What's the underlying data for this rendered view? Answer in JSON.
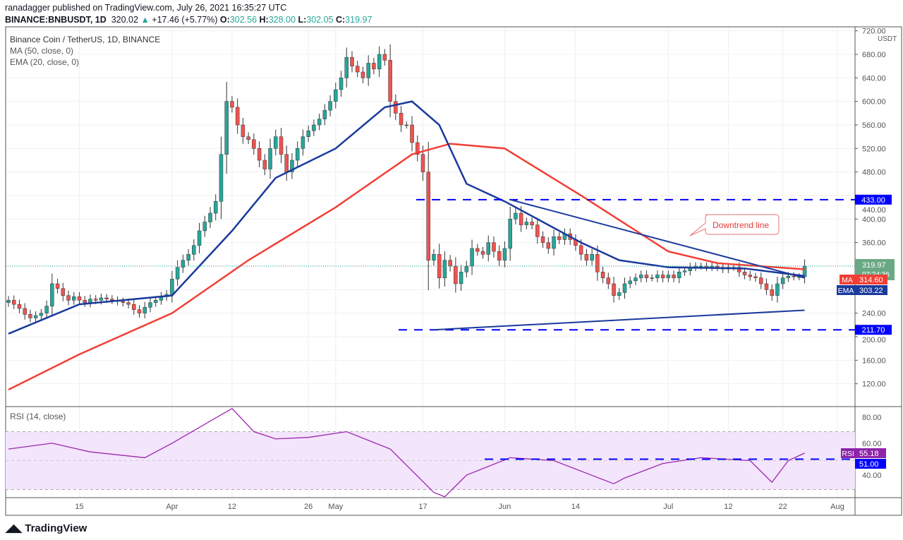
{
  "header": {
    "publisher_line": "ranadagger published on TradingView.com, July 26, 2021 16:35:27 UTC",
    "symbol": "BINANCE:BNBUSDT, 1D",
    "last": "320.02",
    "change": "+17.46 (+5.77%)",
    "o_label": "O:",
    "o": "302.56",
    "h_label": "H:",
    "h": "328.00",
    "l_label": "L:",
    "l": "302.05",
    "c_label": "C:",
    "c": "319.97"
  },
  "legend": {
    "title": "Binance Coin / TetherUS, 1D, BINANCE",
    "ma": "MA (50, close, 0)",
    "ema": "EMA (20, close, 0)",
    "rsi": "RSI (14, close)"
  },
  "annotation": "Downtrend line",
  "footer": {
    "logo": "TradingView"
  },
  "colors": {
    "up": "#26a69a",
    "down": "#ef5350",
    "ma": "#f23f35",
    "ema": "#1a3a9c",
    "level": "#0000ff",
    "rsi": "#9c27b0"
  },
  "chart_data": {
    "type": "candlestick",
    "start_date": "2021-03-02",
    "closes": [
      262,
      255,
      248,
      238,
      232,
      236,
      240,
      252,
      290,
      282,
      270,
      262,
      268,
      262,
      258,
      264,
      262,
      266,
      264,
      262,
      260,
      258,
      255,
      246,
      240,
      250,
      258,
      262,
      268,
      272,
      298,
      318,
      330,
      340,
      355,
      380,
      395,
      410,
      430,
      510,
      600,
      590,
      560,
      540,
      535,
      520,
      500,
      485,
      520,
      540,
      510,
      480,
      500,
      520,
      540,
      550,
      560,
      570,
      585,
      600,
      620,
      640,
      675,
      660,
      650,
      640,
      665,
      655,
      680,
      670,
      600,
      580,
      560,
      560,
      530,
      510,
      480,
      330,
      340,
      300,
      330,
      320,
      290,
      310,
      320,
      350,
      345,
      340,
      360,
      345,
      330,
      350,
      400,
      410,
      390,
      395,
      390,
      370,
      360,
      350,
      370,
      365,
      375,
      365,
      355,
      340,
      330,
      340,
      310,
      300,
      290,
      270,
      275,
      290,
      295,
      300,
      305,
      300,
      300,
      305,
      300,
      305,
      300,
      310,
      312,
      318,
      320,
      320,
      318,
      320,
      318,
      315,
      318,
      318,
      310,
      305,
      302,
      300,
      290,
      280,
      270,
      290,
      300,
      303,
      302,
      302,
      320
    ],
    "ma50": {
      "days": [
        0,
        13,
        30,
        44,
        60,
        74,
        81,
        91,
        105,
        121,
        130,
        146
      ],
      "values": [
        110,
        170,
        240,
        330,
        420,
        510,
        528,
        520,
        440,
        345,
        325,
        314.6
      ]
    },
    "ema20": {
      "days": [
        0,
        13,
        30,
        41,
        49,
        60,
        69,
        74,
        79,
        84,
        91,
        105,
        112,
        121,
        135,
        146
      ],
      "values": [
        205,
        255,
        270,
        380,
        470,
        520,
        590,
        600,
        560,
        460,
        430,
        360,
        330,
        318,
        316,
        303.22
      ]
    },
    "rsi": {
      "days": [
        0,
        8,
        15,
        25,
        30,
        41,
        45,
        49,
        55,
        62,
        70,
        78,
        80,
        84,
        92,
        100,
        111,
        113,
        120,
        127,
        136,
        140,
        143,
        146
      ],
      "values": [
        58,
        62,
        56,
        52,
        62,
        86,
        70,
        65,
        66,
        70,
        58,
        28,
        25,
        40,
        52,
        50,
        34,
        38,
        48,
        52,
        50,
        35,
        50,
        55.18
      ]
    },
    "levels": [
      {
        "label": "433.00",
        "value": 433
      },
      {
        "label": "211.70",
        "value": 211.7
      }
    ],
    "rsi_level": {
      "label": "51.00",
      "value": 51
    },
    "downtrend": {
      "from": {
        "day": 92,
        "value": 433
      },
      "to": {
        "day": 146,
        "value": 300
      }
    },
    "support": {
      "from": {
        "day": 78,
        "value": 211.7
      },
      "to": {
        "day": 146,
        "value": 245
      }
    },
    "price_ticks": [
      "720.00",
      "680.00",
      "640.00",
      "600.00",
      "560.00",
      "520.00",
      "480.00",
      "440.00",
      "400.00",
      "360.00",
      "240.00",
      "200.00",
      "160.00",
      "120.00"
    ],
    "rsi_ticks": [
      "80.00",
      "60.00",
      "40.00"
    ],
    "x_ticks": [
      {
        "label": "15",
        "day": 13
      },
      {
        "label": "Apr",
        "day": 30
      },
      {
        "label": "12",
        "day": 41
      },
      {
        "label": "26",
        "day": 55
      },
      {
        "label": "May",
        "day": 60
      },
      {
        "label": "17",
        "day": 76
      },
      {
        "label": "Jun",
        "day": 91
      },
      {
        "label": "14",
        "day": 104
      },
      {
        "label": "Jul",
        "day": 121
      },
      {
        "label": "12",
        "day": 132
      },
      {
        "label": "22",
        "day": 142
      },
      {
        "label": "Aug",
        "day": 152
      }
    ],
    "price_tags": {
      "last": "319.97",
      "countdown": "07:24:36",
      "ma_label": "MA",
      "ma": "314.60",
      "ema_label": "EMA",
      "ema": "303.22",
      "rsi_label": "RSI",
      "rsi": "55.18",
      "currency": "USDT"
    }
  }
}
